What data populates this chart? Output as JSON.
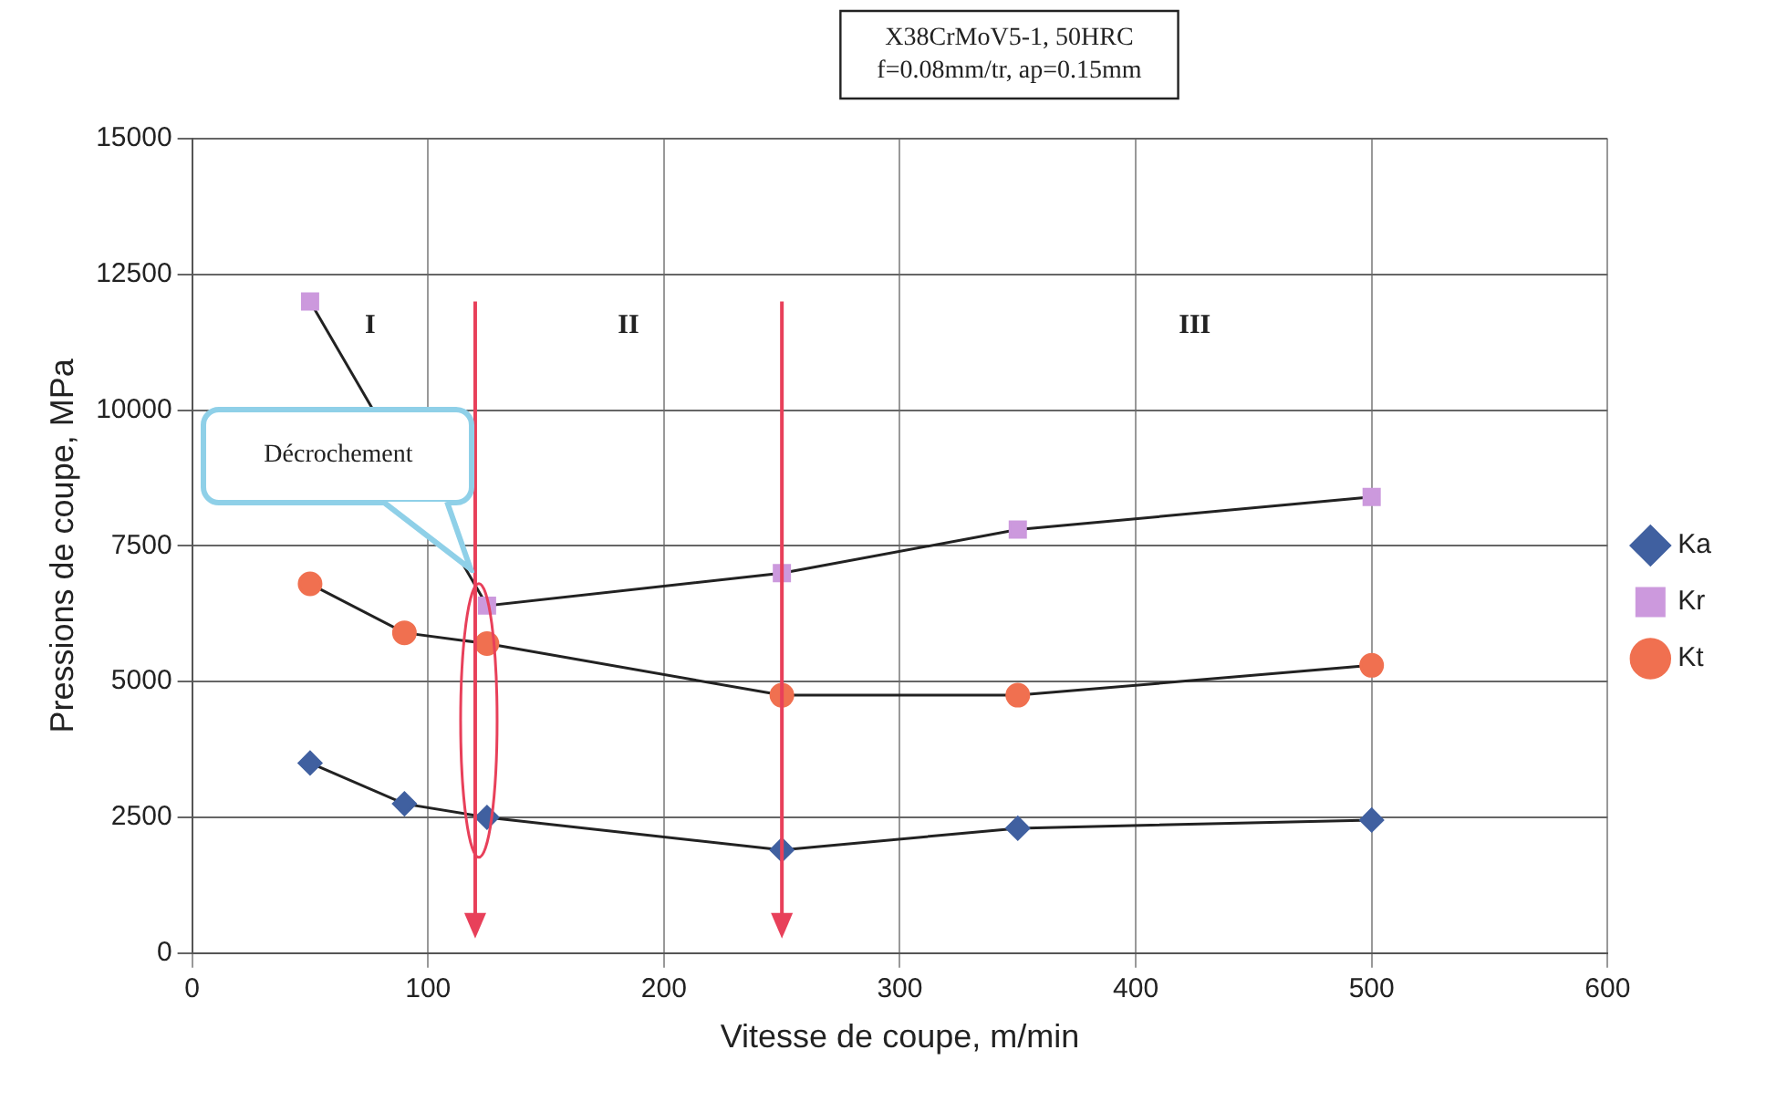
{
  "chart_data": {
    "type": "line",
    "title": "X38CrMoV5-1, 50HRC",
    "subtitle": "f=0.08mm/tr, ap=0.15mm",
    "xlabel": "Vitesse de coupe, m/min",
    "ylabel": "Pressions de coupe, MPa",
    "x": [
      50,
      90,
      125,
      250,
      350,
      500
    ],
    "series": [
      {
        "name": "Ka",
        "color": "#4060a0",
        "marker": "diamond",
        "values": [
          3500,
          2750,
          2500,
          1900,
          2300,
          2450
        ]
      },
      {
        "name": "Kr",
        "color": "#cc99dd",
        "marker": "square",
        "values": [
          12000,
          null,
          6400,
          7000,
          7800,
          8400
        ]
      },
      {
        "name": "Kt",
        "color": "#f07050",
        "marker": "circle",
        "values": [
          6800,
          5900,
          5700,
          4750,
          4750,
          5300
        ]
      }
    ],
    "xlim": [
      0,
      600
    ],
    "xticks": [
      0,
      100,
      200,
      300,
      400,
      500,
      600
    ],
    "ylim": [
      0,
      15000
    ],
    "yticks": [
      0,
      2500,
      5000,
      7500,
      10000,
      12500,
      15000
    ],
    "grid": true,
    "legend": "right",
    "ref_lines": [
      {
        "axis": "x",
        "value": 120,
        "color": "#e8405a"
      },
      {
        "axis": "x",
        "value": 250,
        "color": "#e8405a"
      }
    ],
    "annotations": [
      "I",
      "II",
      "III",
      "Décrochement"
    ]
  }
}
